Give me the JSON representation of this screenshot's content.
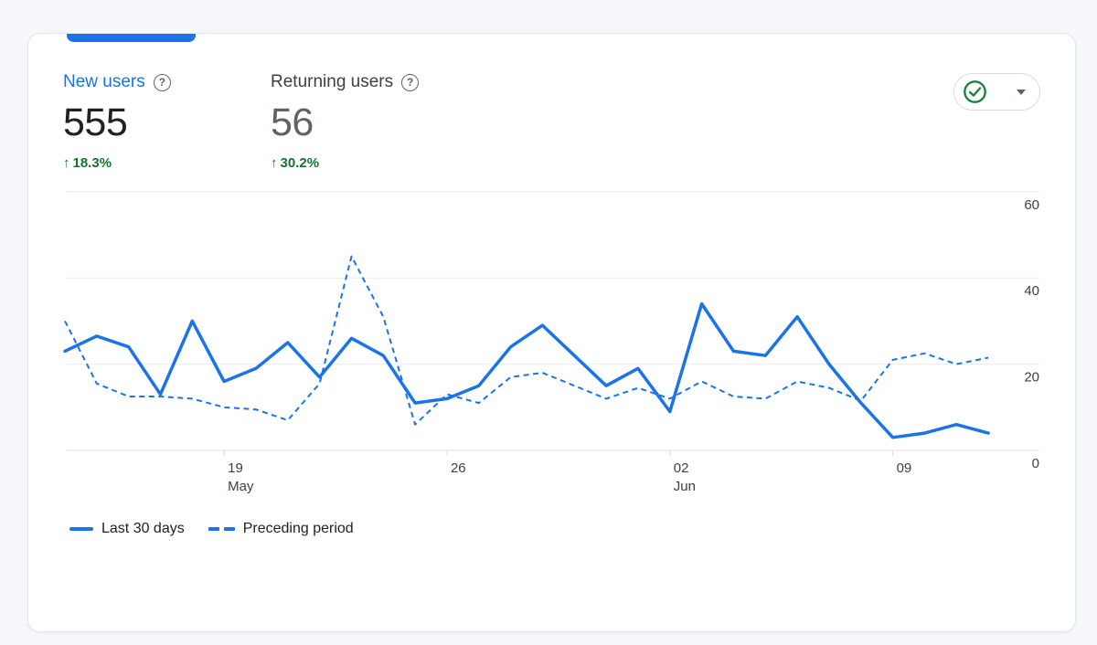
{
  "metrics": [
    {
      "label": "New users",
      "value": "555",
      "delta": "18.3%",
      "trend": "up"
    },
    {
      "label": "Returning users",
      "value": "56",
      "delta": "30.2%",
      "trend": "up"
    }
  ],
  "icons": {
    "help": "?",
    "up_arrow": "↑",
    "status_check": "check-circle",
    "caret": "caret-down"
  },
  "status_button": {
    "state": "ok"
  },
  "colors": {
    "accent_blue": "#1a73e8",
    "positive_green": "#137333",
    "check_green": "#188038",
    "value_dark": "#202124",
    "value_gray": "#5f6368",
    "axis_text": "#3c4043",
    "gridline": "#e9ebee",
    "axis_line": "#dadce0",
    "page_bg": "#f6f8fb",
    "card_bg": "#ffffff"
  },
  "chart_data": {
    "type": "line",
    "title": "",
    "xlabel": "",
    "ylabel": "",
    "x_unit": "day",
    "ylim": [
      0,
      60
    ],
    "y_ticks": [
      0,
      20,
      40,
      60
    ],
    "grid": "horizontal",
    "legend_position": "bottom-left",
    "x_ticks": [
      {
        "day_index": 5,
        "label": "19",
        "sublabel": "May"
      },
      {
        "day_index": 12,
        "label": "26",
        "sublabel": ""
      },
      {
        "day_index": 19,
        "label": "02",
        "sublabel": "Jun"
      },
      {
        "day_index": 26,
        "label": "09",
        "sublabel": ""
      }
    ],
    "series": [
      {
        "name": "Last 30 days",
        "style": "solid",
        "color": "#1a73e8",
        "values": [
          23,
          26.5,
          24,
          13,
          30,
          16,
          19,
          25,
          17,
          26,
          22,
          11,
          12,
          15,
          24,
          29,
          22,
          15,
          19,
          9,
          34,
          23,
          22,
          31,
          20,
          11,
          3,
          4,
          6,
          4
        ]
      },
      {
        "name": "Preceding period",
        "style": "dashed",
        "color": "#1a73e8",
        "values": [
          30,
          15.5,
          12.5,
          12.5,
          12,
          10,
          9.5,
          7,
          15.5,
          45,
          31,
          6,
          13,
          11,
          17,
          18,
          15,
          12,
          14.5,
          12,
          16,
          12.5,
          12,
          16,
          14.5,
          11.5,
          21,
          22.5,
          20,
          21.5
        ]
      }
    ]
  }
}
